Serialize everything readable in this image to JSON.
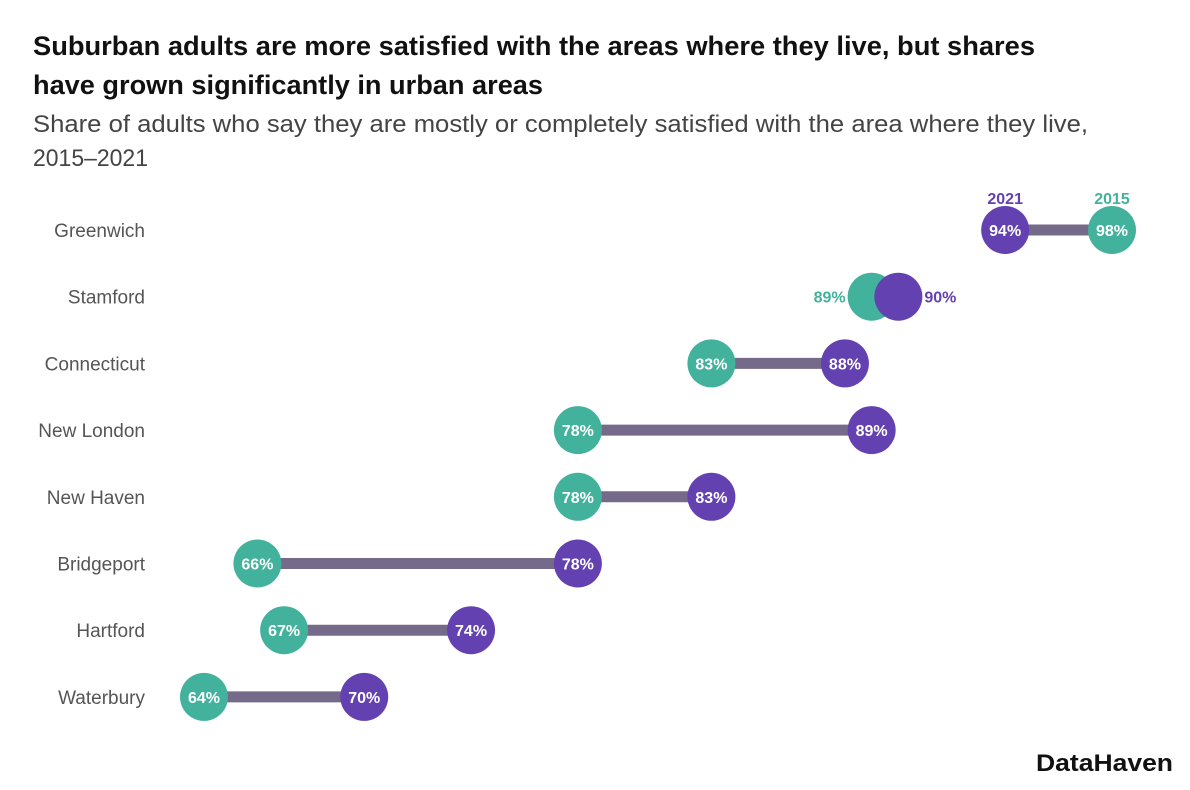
{
  "chart_data": {
    "type": "dumbbell",
    "title": "Suburban adults are more satisfied with the areas where they live, but shares have grown significantly in urban areas",
    "title_lines": [
      "Suburban adults are more satisfied with the areas where they live, but shares",
      "have grown significantly in urban areas"
    ],
    "subtitle": "Share of adults who say they are mostly or completely satisfied with the area where they live, 2015–2021",
    "subtitle_lines": [
      "Share of adults who say they are mostly or completely satisfied with the area where they live,",
      "2015–2021"
    ],
    "unit": "%",
    "series": [
      {
        "name": "2015",
        "color": "#43b29c",
        "values": [
          98,
          89,
          83,
          78,
          78,
          66,
          67,
          64
        ]
      },
      {
        "name": "2021",
        "color": "#6441b0",
        "values": [
          94,
          90,
          88,
          89,
          83,
          78,
          74,
          70
        ]
      }
    ],
    "categories": [
      "Greenwich",
      "Stamford",
      "Connecticut",
      "New London",
      "New Haven",
      "Bridgeport",
      "Hartford",
      "Waterbury"
    ],
    "connector_color": "#756a8a",
    "xlim": [
      64,
      98
    ],
    "grid": false
  },
  "brand": "DataHaven"
}
